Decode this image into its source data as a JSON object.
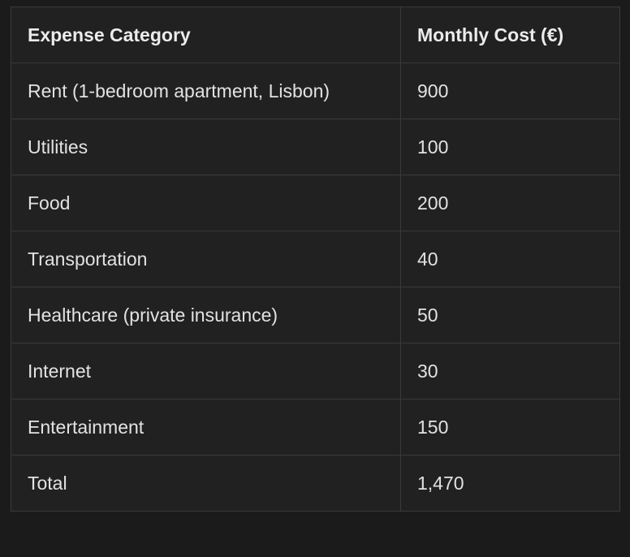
{
  "table": {
    "headers": [
      "Expense Category",
      "Monthly Cost (€)"
    ],
    "rows": [
      {
        "category": "Rent (1-bedroom apartment, Lisbon)",
        "cost": "900"
      },
      {
        "category": "Utilities",
        "cost": "100"
      },
      {
        "category": "Food",
        "cost": "200"
      },
      {
        "category": "Transportation",
        "cost": "40"
      },
      {
        "category": "Healthcare (private insurance)",
        "cost": "50"
      },
      {
        "category": "Internet",
        "cost": "30"
      },
      {
        "category": "Entertainment",
        "cost": "150"
      },
      {
        "category": "Total",
        "cost": "1,470"
      }
    ]
  },
  "chart_data": {
    "type": "table",
    "title": "",
    "columns": [
      "Expense Category",
      "Monthly Cost (€)"
    ],
    "categories": [
      "Rent (1-bedroom apartment, Lisbon)",
      "Utilities",
      "Food",
      "Transportation",
      "Healthcare (private insurance)",
      "Internet",
      "Entertainment"
    ],
    "values": [
      900,
      100,
      200,
      40,
      50,
      30,
      150
    ],
    "total_label": "Total",
    "total_value": 1470,
    "currency": "EUR"
  },
  "colors": {
    "page_background": "#1b1b1b",
    "cell_background": "#212121",
    "border": "#3a3a3a",
    "header_text": "#ebebeb",
    "body_text": "#e2e2e2"
  }
}
